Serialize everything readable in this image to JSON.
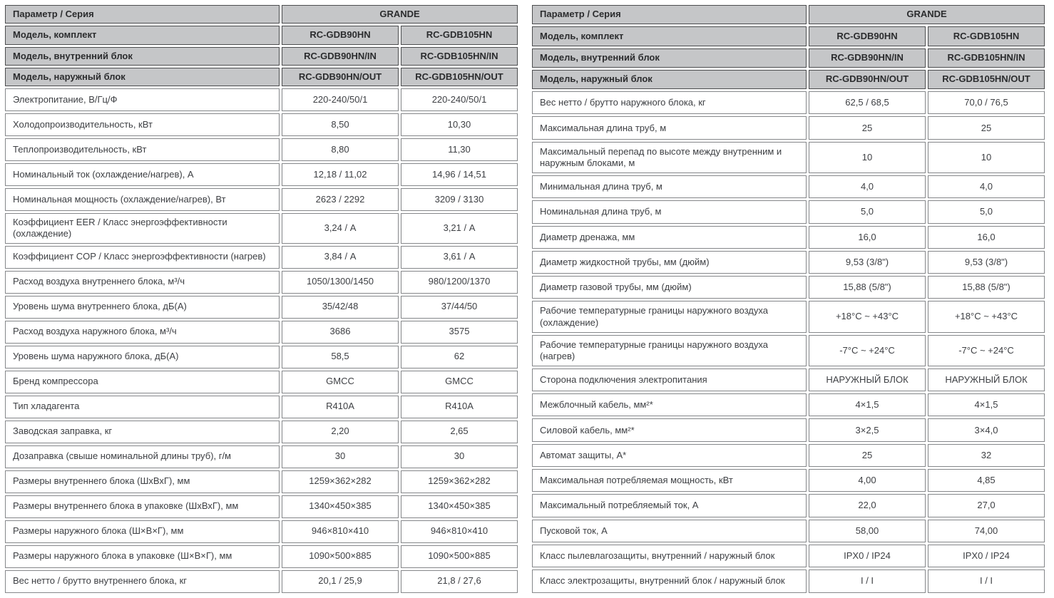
{
  "tables": [
    {
      "header": {
        "param_label": "Параметр / Серия",
        "series": "GRANDE",
        "models": [
          {
            "label": "Модель, комплект",
            "v1": "RC-GDB90HN",
            "v2": "RC-GDB105HN"
          },
          {
            "label": "Модель, внутренний блок",
            "v1": "RC-GDB90HN/IN",
            "v2": "RC-GDB105HN/IN"
          },
          {
            "label": "Модель, наружный блок",
            "v1": "RC-GDB90HN/OUT",
            "v2": "RC-GDB105HN/OUT"
          }
        ]
      },
      "rows": [
        {
          "label": "Электропитание, В/Гц/Ф",
          "v1": "220-240/50/1",
          "v2": "220-240/50/1"
        },
        {
          "label": "Холодопроизводительность, кВт",
          "v1": "8,50",
          "v2": "10,30"
        },
        {
          "label": "Теплопроизводительность, кВт",
          "v1": "8,80",
          "v2": "11,30"
        },
        {
          "label": "Номинальный ток (охлаждение/нагрев), А",
          "v1": "12,18 / 11,02",
          "v2": "14,96 / 14,51"
        },
        {
          "label": "Номинальная мощность (охлаждение/нагрев), Вт",
          "v1": "2623 / 2292",
          "v2": "3209 / 3130"
        },
        {
          "label": "Коэффициент EER / Класс энергоэффективности (охлаждение)",
          "v1": "3,24 / А",
          "v2": "3,21 / А"
        },
        {
          "label": "Коэффициент COP / Класс энергоэффективности (нагрев)",
          "v1": "3,84 / А",
          "v2": "3,61 / А"
        },
        {
          "label": "Расход воздуха внутреннего блока, м³/ч",
          "v1": "1050/1300/1450",
          "v2": "980/1200/1370"
        },
        {
          "label": "Уровень шума внутреннего блока, дБ(А)",
          "v1": "35/42/48",
          "v2": "37/44/50"
        },
        {
          "label": "Расход воздуха наружного блока, м³/ч",
          "v1": "3686",
          "v2": "3575"
        },
        {
          "label": "Уровень шума наружного блока, дБ(А)",
          "v1": "58,5",
          "v2": "62"
        },
        {
          "label": "Бренд компрессора",
          "v1": "GMCC",
          "v2": "GMCC"
        },
        {
          "label": "Тип хладагента",
          "v1": "R410A",
          "v2": "R410A"
        },
        {
          "label": "Заводская заправка, кг",
          "v1": "2,20",
          "v2": "2,65"
        },
        {
          "label": "Дозаправка (свыше номинальной длины труб), г/м",
          "v1": "30",
          "v2": "30"
        },
        {
          "label": "Размеры внутреннего блока (ШхВхГ), мм",
          "v1": "1259×362×282",
          "v2": "1259×362×282"
        },
        {
          "label": "Размеры внутреннего блока в упаковке (ШхВхГ), мм",
          "v1": "1340×450×385",
          "v2": "1340×450×385"
        },
        {
          "label": "Размеры наружного блока (Ш×В×Г), мм",
          "v1": "946×810×410",
          "v2": "946×810×410"
        },
        {
          "label": "Размеры наружного блока в упаковке (Ш×В×Г), мм",
          "v1": "1090×500×885",
          "v2": "1090×500×885"
        },
        {
          "label": "Вес нетто / брутто внутреннего блока, кг",
          "v1": "20,1 / 25,9",
          "v2": "21,8 / 27,6"
        }
      ]
    },
    {
      "header": {
        "param_label": "Параметр / Серия",
        "series": "GRANDE",
        "models": [
          {
            "label": "Модель, комплект",
            "v1": "RC-GDB90HN",
            "v2": "RC-GDB105HN"
          },
          {
            "label": "Модель, внутренний блок",
            "v1": "RC-GDB90HN/IN",
            "v2": "RC-GDB105HN/IN"
          },
          {
            "label": "Модель, наружный блок",
            "v1": "RC-GDB90HN/OUT",
            "v2": "RC-GDB105HN/OUT"
          }
        ]
      },
      "rows": [
        {
          "label": "Вес нетто / брутто наружного блока, кг",
          "v1": "62,5 / 68,5",
          "v2": "70,0 / 76,5"
        },
        {
          "label": "Максимальная длина труб, м",
          "v1": "25",
          "v2": "25"
        },
        {
          "label": "Максимальный перепад по высоте между внутренним и наружным блоками, м",
          "v1": "10",
          "v2": "10"
        },
        {
          "label": "Минимальная длина труб, м",
          "v1": "4,0",
          "v2": "4,0"
        },
        {
          "label": "Номинальная длина труб, м",
          "v1": "5,0",
          "v2": "5,0"
        },
        {
          "label": "Диаметр дренажа, мм",
          "v1": "16,0",
          "v2": "16,0"
        },
        {
          "label": "Диаметр жидкостной трубы, мм (дюйм)",
          "v1": "9,53 (3/8\")",
          "v2": "9,53 (3/8\")"
        },
        {
          "label": "Диаметр газовой трубы, мм (дюйм)",
          "v1": "15,88 (5/8\")",
          "v2": "15,88 (5/8\")"
        },
        {
          "label": "Рабочие температурные границы наружного воздуха (охлаждение)",
          "v1": "+18°C ~ +43°C",
          "v2": "+18°C ~ +43°C"
        },
        {
          "label": "Рабочие температурные границы наружного воздуха (нагрев)",
          "v1": "-7°C ~ +24°C",
          "v2": "-7°C ~ +24°C"
        },
        {
          "label": "Сторона подключения электропитания",
          "v1": "НАРУЖНЫЙ БЛОК",
          "v2": "НАРУЖНЫЙ БЛОК"
        },
        {
          "label": "Межблочный кабель, мм²*",
          "v1": "4×1,5",
          "v2": "4×1,5"
        },
        {
          "label": "Силовой кабель, мм²*",
          "v1": "3×2,5",
          "v2": "3×4,0"
        },
        {
          "label": "Автомат защиты, А*",
          "v1": "25",
          "v2": "32"
        },
        {
          "label": "Максимальная потребляемая мощность, кВт",
          "v1": "4,00",
          "v2": "4,85"
        },
        {
          "label": "Максимальный потребляемый ток, А",
          "v1": "22,0",
          "v2": "27,0"
        },
        {
          "label": "Пусковой ток, А",
          "v1": "58,00",
          "v2": "74,00"
        },
        {
          "label": "Класс пылевлагозащиты, внутренний / наружный блок",
          "v1": "IPX0 / IP24",
          "v2": "IPX0 / IP24"
        },
        {
          "label": "Класс электрозащиты, внутренний блок / наружный блок",
          "v1": "I / I",
          "v2": "I / I"
        }
      ]
    }
  ],
  "colors": {
    "header_bg": "#c5c6c8",
    "header_border": "#4c4d4f",
    "body_border": "#85878a",
    "text": "#3e4044"
  }
}
